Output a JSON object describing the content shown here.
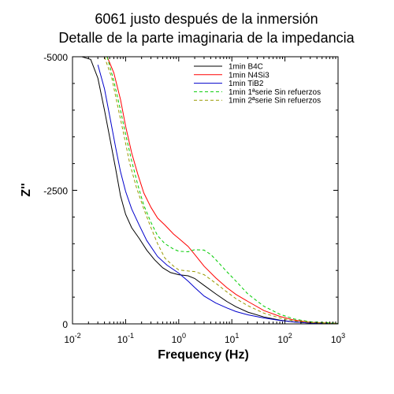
{
  "chart_data": {
    "type": "line",
    "title": "6061 justo después de la inmersión",
    "subtitle": "Detalle de la parte imaginaria de la impedancia",
    "xlabel": "Frequency (Hz)",
    "ylabel": "Z''",
    "xscale": "log",
    "xlim": [
      0.01,
      1000
    ],
    "ylim": [
      0,
      -5000
    ],
    "x_ticks": [
      {
        "base": "10",
        "exp": "-2"
      },
      {
        "base": "10",
        "exp": "-1"
      },
      {
        "base": "10",
        "exp": "0"
      },
      {
        "base": "10",
        "exp": "1"
      },
      {
        "base": "10",
        "exp": "2"
      },
      {
        "base": "10",
        "exp": "3"
      }
    ],
    "y_ticks": [
      "-5000",
      "-2500",
      "0"
    ],
    "y_tick_values": [
      -5000,
      -2500,
      0
    ],
    "grid": false,
    "legend_position": "top-right",
    "series": [
      {
        "name": "1min B4C",
        "color": "#000000",
        "dash": "solid",
        "points": [
          [
            0.015,
            -5000
          ],
          [
            0.022,
            -4950
          ],
          [
            0.03,
            -4600
          ],
          [
            0.04,
            -4000
          ],
          [
            0.05,
            -3500
          ],
          [
            0.065,
            -2900
          ],
          [
            0.08,
            -2400
          ],
          [
            0.1,
            -2050
          ],
          [
            0.13,
            -1800
          ],
          [
            0.18,
            -1600
          ],
          [
            0.25,
            -1380
          ],
          [
            0.35,
            -1200
          ],
          [
            0.5,
            -1050
          ],
          [
            0.7,
            -960
          ],
          [
            1.0,
            -920
          ],
          [
            1.5,
            -900
          ],
          [
            2.0,
            -850
          ],
          [
            3.0,
            -720
          ],
          [
            5.0,
            -560
          ],
          [
            8.0,
            -420
          ],
          [
            12,
            -320
          ],
          [
            20,
            -220
          ],
          [
            40,
            -130
          ],
          [
            80,
            -70
          ],
          [
            150,
            -35
          ],
          [
            300,
            -15
          ],
          [
            1000,
            -5
          ]
        ]
      },
      {
        "name": "1min N4Si3",
        "color": "#ff0000",
        "dash": "solid",
        "points": [
          [
            0.045,
            -5000
          ],
          [
            0.06,
            -4700
          ],
          [
            0.08,
            -4200
          ],
          [
            0.1,
            -3700
          ],
          [
            0.13,
            -3200
          ],
          [
            0.17,
            -2800
          ],
          [
            0.22,
            -2450
          ],
          [
            0.3,
            -2180
          ],
          [
            0.4,
            -1980
          ],
          [
            0.55,
            -1850
          ],
          [
            0.8,
            -1680
          ],
          [
            1.0,
            -1600
          ],
          [
            1.5,
            -1450
          ],
          [
            2.0,
            -1300
          ],
          [
            3.0,
            -1080
          ],
          [
            5.0,
            -860
          ],
          [
            8.0,
            -680
          ],
          [
            12,
            -550
          ],
          [
            20,
            -420
          ],
          [
            40,
            -250
          ],
          [
            80,
            -140
          ],
          [
            150,
            -70
          ],
          [
            300,
            -30
          ],
          [
            1000,
            -8
          ]
        ]
      },
      {
        "name": "1min TiB2",
        "color": "#0000cc",
        "dash": "solid",
        "points": [
          [
            0.03,
            -4850
          ],
          [
            0.04,
            -4400
          ],
          [
            0.05,
            -3900
          ],
          [
            0.065,
            -3300
          ],
          [
            0.08,
            -2850
          ],
          [
            0.1,
            -2480
          ],
          [
            0.13,
            -2150
          ],
          [
            0.18,
            -1850
          ],
          [
            0.25,
            -1560
          ],
          [
            0.4,
            -1260
          ],
          [
            0.6,
            -1100
          ],
          [
            1.0,
            -950
          ],
          [
            1.5,
            -800
          ],
          [
            2.0,
            -680
          ],
          [
            3.0,
            -520
          ],
          [
            5.0,
            -390
          ],
          [
            8.0,
            -300
          ],
          [
            12,
            -230
          ],
          [
            20,
            -170
          ],
          [
            40,
            -110
          ],
          [
            80,
            -65
          ],
          [
            150,
            -35
          ],
          [
            300,
            -15
          ],
          [
            1000,
            -5
          ]
        ]
      },
      {
        "name": "1min 1ªserie Sin refuerzos",
        "color": "#00cc00",
        "dash": "dashed",
        "points": [
          [
            0.045,
            -5000
          ],
          [
            0.06,
            -4550
          ],
          [
            0.08,
            -4000
          ],
          [
            0.1,
            -3550
          ],
          [
            0.13,
            -3050
          ],
          [
            0.17,
            -2600
          ],
          [
            0.22,
            -2220
          ],
          [
            0.3,
            -1900
          ],
          [
            0.4,
            -1650
          ],
          [
            0.55,
            -1500
          ],
          [
            0.8,
            -1400
          ],
          [
            1.0,
            -1360
          ],
          [
            1.5,
            -1350
          ],
          [
            2.0,
            -1390
          ],
          [
            3.0,
            -1380
          ],
          [
            4.0,
            -1300
          ],
          [
            5.0,
            -1200
          ],
          [
            8.0,
            -980
          ],
          [
            12,
            -800
          ],
          [
            20,
            -560
          ],
          [
            40,
            -330
          ],
          [
            80,
            -180
          ],
          [
            150,
            -90
          ],
          [
            300,
            -40
          ],
          [
            1000,
            -10
          ]
        ]
      },
      {
        "name": "1min 2ªserie Sin refuerzos",
        "color": "#999900",
        "dash": "dashed",
        "points": [
          [
            0.04,
            -5000
          ],
          [
            0.055,
            -4600
          ],
          [
            0.07,
            -4100
          ],
          [
            0.09,
            -3600
          ],
          [
            0.12,
            -3000
          ],
          [
            0.16,
            -2550
          ],
          [
            0.22,
            -2150
          ],
          [
            0.3,
            -1800
          ],
          [
            0.4,
            -1500
          ],
          [
            0.55,
            -1230
          ],
          [
            0.8,
            -1080
          ],
          [
            1.0,
            -1010
          ],
          [
            1.5,
            -990
          ],
          [
            2.0,
            -980
          ],
          [
            3.0,
            -920
          ],
          [
            5.0,
            -760
          ],
          [
            8.0,
            -600
          ],
          [
            12,
            -470
          ],
          [
            20,
            -340
          ],
          [
            40,
            -200
          ],
          [
            80,
            -110
          ],
          [
            150,
            -55
          ],
          [
            300,
            -25
          ],
          [
            1000,
            -6
          ]
        ]
      }
    ]
  }
}
